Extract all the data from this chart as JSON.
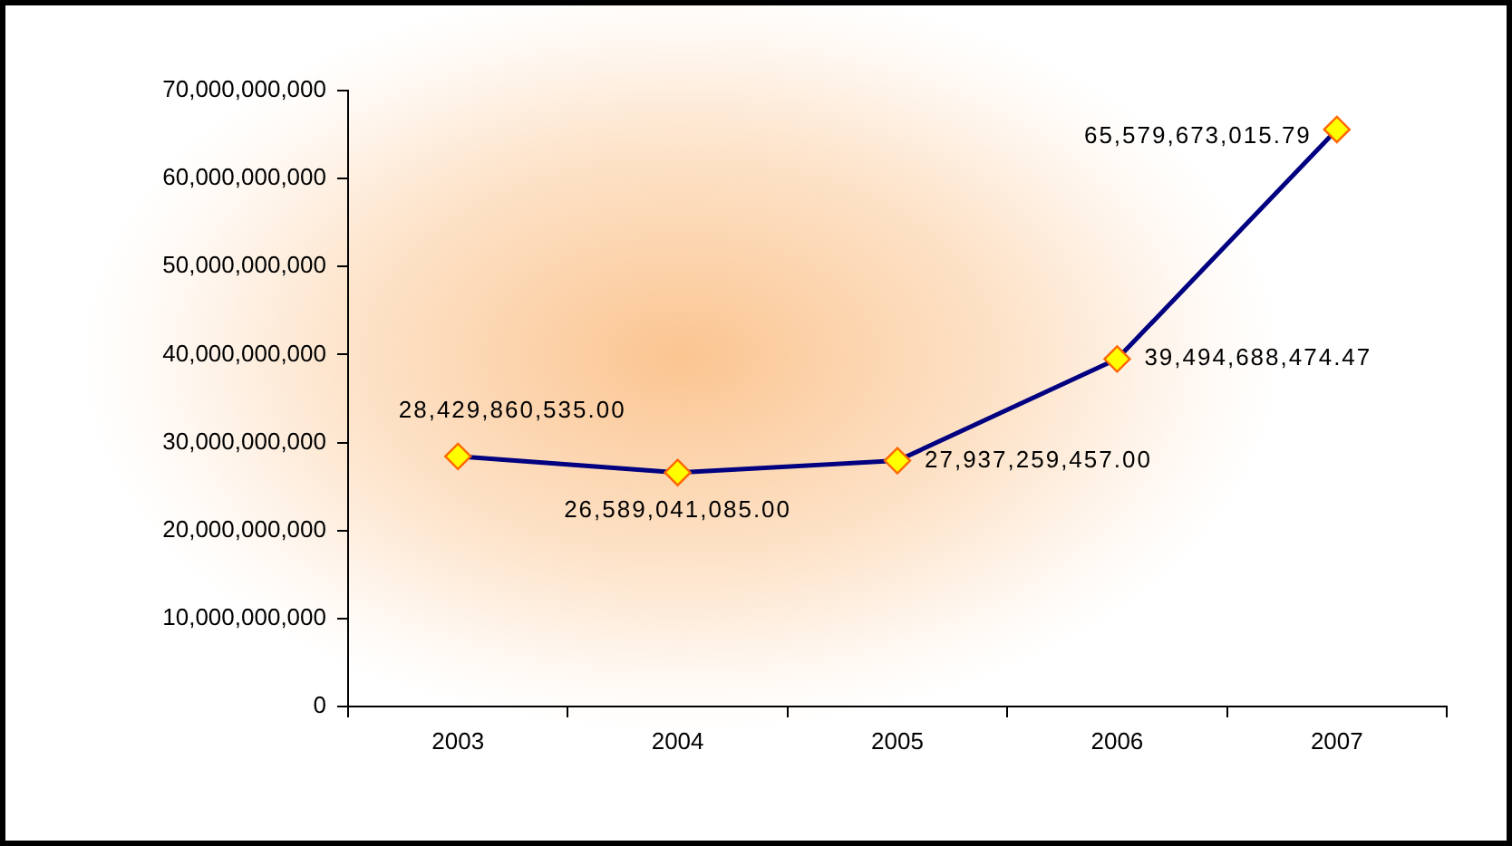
{
  "chart_data": {
    "type": "line",
    "categories": [
      "2003",
      "2004",
      "2005",
      "2006",
      "2007"
    ],
    "series": [
      {
        "color": "#000080",
        "values": [
          28429860535.0,
          26589041085.0,
          27937259457.0,
          39494688474.47,
          65579673015.79
        ],
        "value_labels": [
          "28,429,860,535.00",
          "26,589,041,085.00",
          "27,937,259,457.00",
          "39,494,688,474.47",
          "65,579,673,015.79"
        ]
      }
    ],
    "ylim": [
      0,
      70000000000
    ],
    "yticks": [
      0,
      {
        "value": 10000000000,
        "label": "10,000,000,000"
      },
      {
        "value": 20000000000,
        "label": "20,000,000,000"
      },
      {
        "value": 30000000000,
        "label": "30,000,000,000"
      },
      {
        "value": 40000000000,
        "label": "40,000,000,000"
      },
      {
        "value": 50000000000,
        "label": "50,000,000,000"
      },
      {
        "value": 60000000000,
        "label": "60,000,000,000"
      },
      {
        "value": 70000000000,
        "label": "70,000,000,000"
      }
    ],
    "marker": "diamond",
    "legend": false
  }
}
